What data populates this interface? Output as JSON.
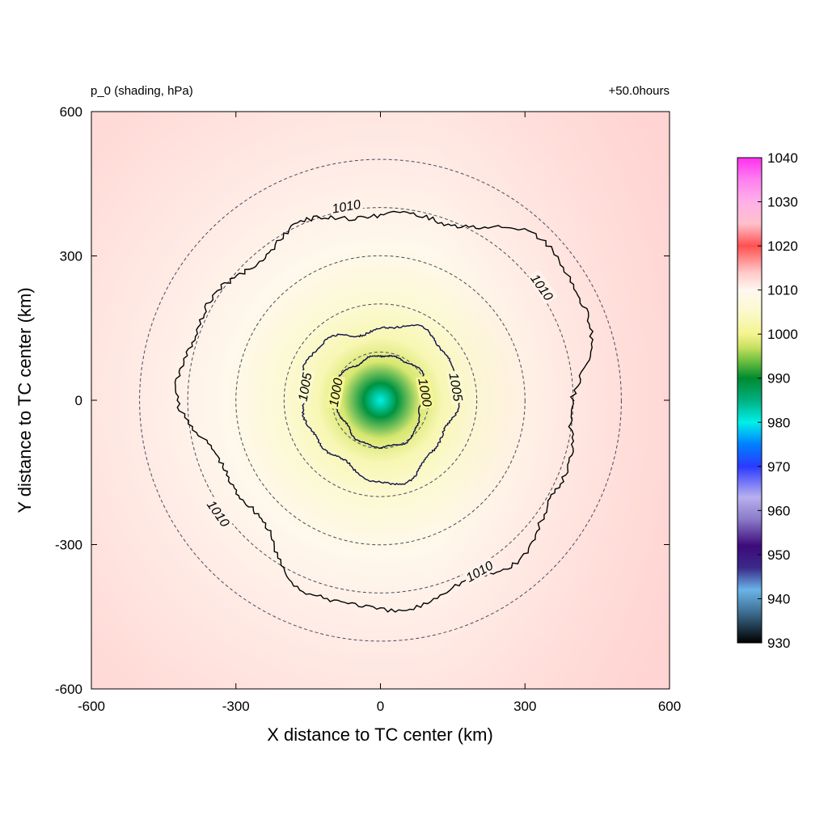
{
  "chart_data": {
    "type": "heatmap",
    "title_left": "p_0 (shading, hPa)",
    "title_right": "+50.0hours",
    "xlabel": "X distance to TC center (km)",
    "ylabel": "Y distance to TC center (km)",
    "xlim": [
      -600,
      600
    ],
    "ylim": [
      -600,
      600
    ],
    "xticks": [
      -600,
      -300,
      0,
      300,
      600
    ],
    "yticks": [
      -600,
      -300,
      0,
      300,
      600
    ],
    "colorbar": {
      "ticks": [
        930,
        940,
        950,
        960,
        970,
        980,
        990,
        1000,
        1010,
        1020,
        1030,
        1040
      ],
      "colors": [
        {
          "value": 930,
          "color": "#000000"
        },
        {
          "value": 937,
          "color": "#3f6f93"
        },
        {
          "value": 942,
          "color": "#6ab4e8"
        },
        {
          "value": 947,
          "color": "#3a2a8a"
        },
        {
          "value": 952,
          "color": "#3d0a7a"
        },
        {
          "value": 958,
          "color": "#8a7ac8"
        },
        {
          "value": 963,
          "color": "#b8b0ee"
        },
        {
          "value": 970,
          "color": "#2a3aff"
        },
        {
          "value": 975,
          "color": "#0080ff"
        },
        {
          "value": 980,
          "color": "#00f0e8"
        },
        {
          "value": 985,
          "color": "#00b080"
        },
        {
          "value": 990,
          "color": "#008a30"
        },
        {
          "value": 994,
          "color": "#70c040"
        },
        {
          "value": 997,
          "color": "#c8e060"
        },
        {
          "value": 1000,
          "color": "#f4f490"
        },
        {
          "value": 1005,
          "color": "#fbf9cc"
        },
        {
          "value": 1010,
          "color": "#fff8f0"
        },
        {
          "value": 1014,
          "color": "#ffc8c8"
        },
        {
          "value": 1020,
          "color": "#ff5050"
        },
        {
          "value": 1025,
          "color": "#ffc0cc"
        },
        {
          "value": 1030,
          "color": "#ffb0e8"
        },
        {
          "value": 1035,
          "color": "#ff80f0"
        },
        {
          "value": 1040,
          "color": "#ff30f0"
        }
      ]
    },
    "pressure_field": {
      "center_value": 980,
      "shading_stops": [
        {
          "r_km": 0,
          "value": 980
        },
        {
          "r_km": 35,
          "value": 989
        },
        {
          "r_km": 80,
          "value": 998
        },
        {
          "r_km": 130,
          "value": 1003
        },
        {
          "r_km": 200,
          "value": 1006
        },
        {
          "r_km": 320,
          "value": 1009.5
        },
        {
          "r_km": 480,
          "value": 1011
        },
        {
          "r_km": 800,
          "value": 1012.5
        }
      ],
      "east_gradient": 1.5
    },
    "contours": [
      {
        "value": 1000,
        "label": "1000",
        "mean_radius_km": 95
      },
      {
        "value": 1005,
        "label": "1005",
        "mean_radius_km": 160
      },
      {
        "value": 1010,
        "label": "1010",
        "mean_radius_km": 410
      }
    ],
    "reference_circles_km": [
      100,
      200,
      300,
      400,
      500
    ]
  }
}
